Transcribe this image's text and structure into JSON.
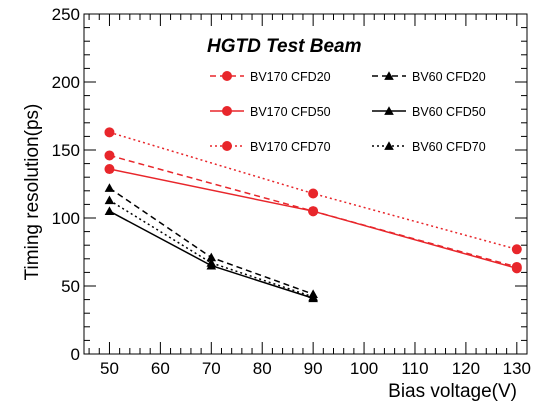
{
  "chart_data": {
    "type": "line",
    "title": "HGTD Test Beam",
    "xlabel": "Bias voltage(V)",
    "ylabel": "Timing resolution(ps)",
    "xlim": [
      45,
      132
    ],
    "ylim": [
      0,
      250
    ],
    "xticks": [
      50,
      60,
      70,
      80,
      90,
      100,
      110,
      120,
      130
    ],
    "yticks": [
      0,
      50,
      100,
      150,
      200,
      250
    ],
    "grid": false,
    "legend_position": "top-right",
    "colors": {
      "red": "#e8262b",
      "black": "#000000"
    },
    "series": [
      {
        "name": "BV170 CFD20",
        "color": "#e8262b",
        "marker": "circle",
        "dash": "dashed",
        "points": [
          [
            50,
            146
          ],
          [
            90,
            105
          ],
          [
            130,
            64
          ]
        ]
      },
      {
        "name": "BV60 CFD20",
        "color": "#000000",
        "marker": "triangle",
        "dash": "dashed",
        "points": [
          [
            50,
            122
          ],
          [
            70,
            71
          ],
          [
            90,
            44
          ]
        ]
      },
      {
        "name": "BV170 CFD50",
        "color": "#e8262b",
        "marker": "circle",
        "dash": "solid",
        "points": [
          [
            50,
            136
          ],
          [
            90,
            105
          ],
          [
            130,
            63
          ]
        ]
      },
      {
        "name": "BV60 CFD50",
        "color": "#000000",
        "marker": "triangle",
        "dash": "solid",
        "points": [
          [
            50,
            105
          ],
          [
            70,
            65
          ],
          [
            90,
            41
          ]
        ]
      },
      {
        "name": "BV170 CFD70",
        "color": "#e8262b",
        "marker": "circle",
        "dash": "dotted",
        "points": [
          [
            50,
            163
          ],
          [
            90,
            118
          ],
          [
            130,
            77
          ]
        ]
      },
      {
        "name": "BV60 CFD70",
        "color": "#000000",
        "marker": "triangle",
        "dash": "dotted",
        "points": [
          [
            50,
            113
          ],
          [
            70,
            67
          ],
          [
            90,
            42
          ]
        ]
      }
    ]
  }
}
